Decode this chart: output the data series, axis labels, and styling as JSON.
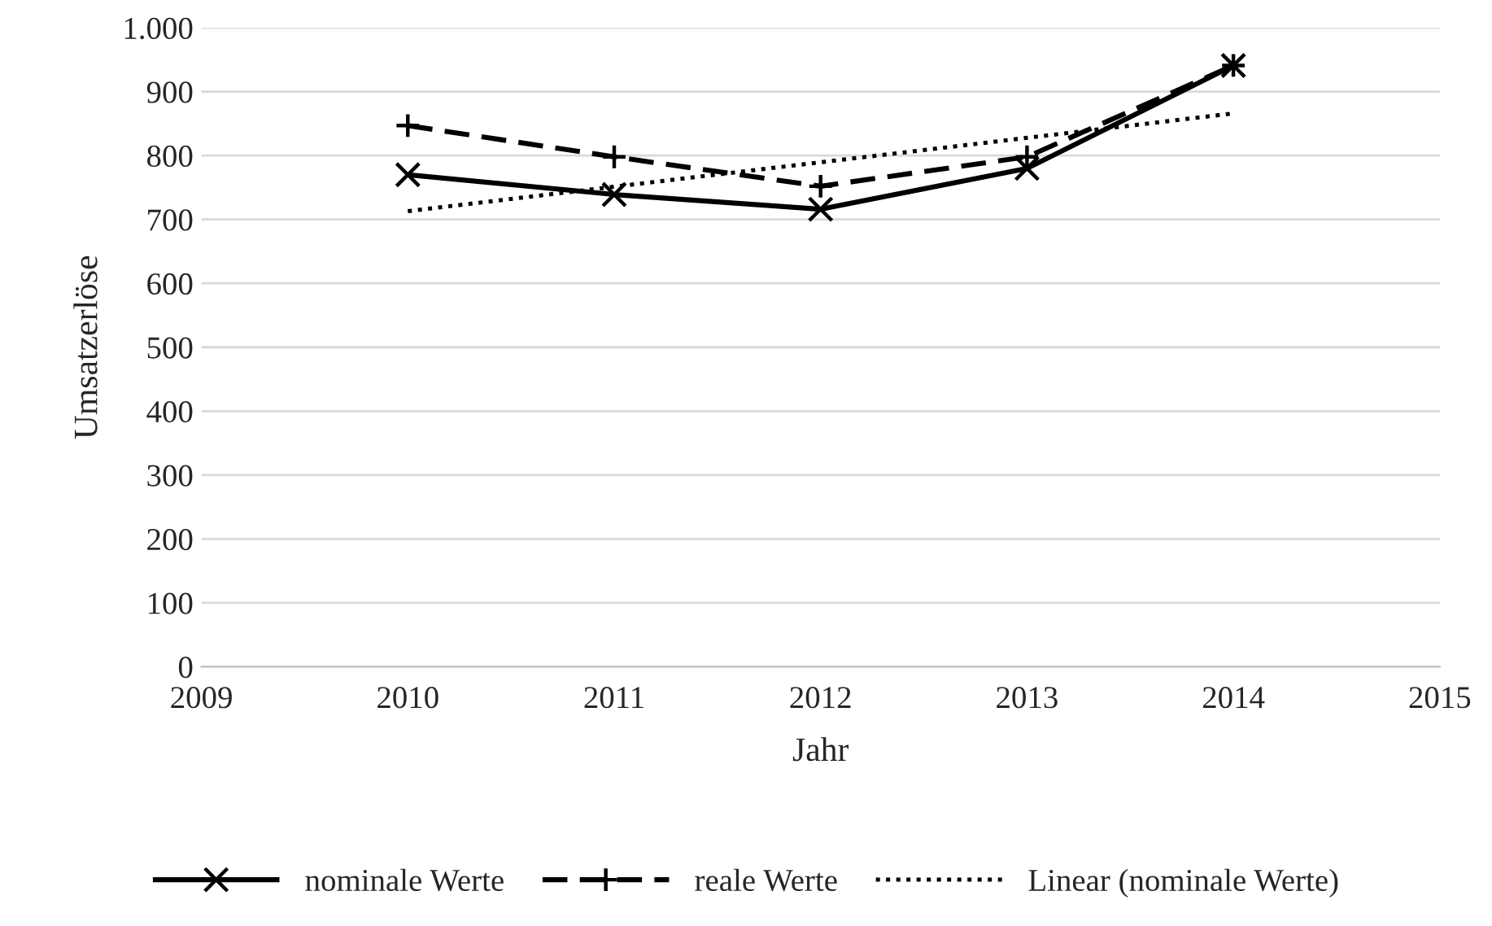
{
  "chart_data": {
    "type": "line",
    "xlabel": "Jahr",
    "ylabel": "Umsatzerlöse",
    "x": [
      2010,
      2011,
      2012,
      2013,
      2014
    ],
    "series": [
      {
        "name": "nominale Werte",
        "color": "#000000",
        "values": [
          770,
          739,
          716,
          780,
          941
        ],
        "marker": "cross",
        "line_style": "solid"
      },
      {
        "name": "reale Werte",
        "color": "#000000",
        "values": [
          847,
          798,
          752,
          798,
          941
        ],
        "marker": "plus",
        "line_style": "dashed"
      },
      {
        "name": "Linear (nominale Werte)",
        "color": "#000000",
        "x": [
          2010,
          2014
        ],
        "values": [
          713,
          866
        ],
        "marker": "none",
        "line_style": "dotted"
      }
    ],
    "xlim": [
      2009,
      2015
    ],
    "xticks": [
      2009,
      2010,
      2011,
      2012,
      2013,
      2014,
      2015
    ],
    "ylim": [
      0,
      1000
    ],
    "yticks": [
      0,
      100,
      200,
      300,
      400,
      500,
      600,
      700,
      800,
      900,
      {
        "value": 1000,
        "label": "1.000"
      }
    ],
    "grid": "y",
    "legend": "bottom"
  }
}
